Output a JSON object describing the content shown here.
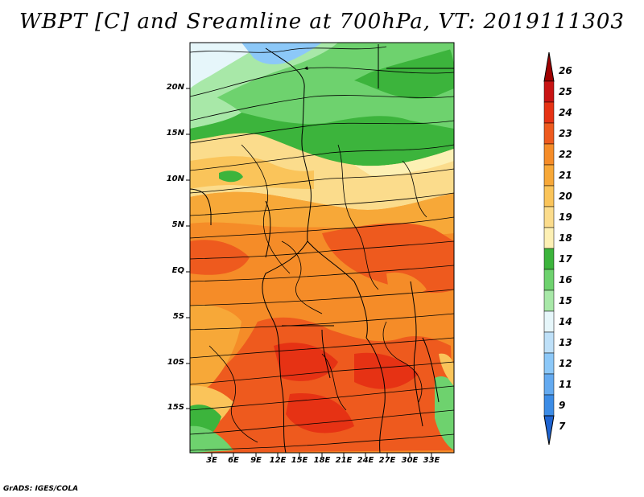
{
  "title": "WBPT [C] and Sreamline at 700hPa, VT: 2019111303",
  "footer": "GrADS: IGES/COLA",
  "lat_labels": [
    "20N",
    "15N",
    "10N",
    "5N",
    "EQ",
    "5S",
    "10S",
    "15S"
  ],
  "lon_labels": [
    "3E",
    "6E",
    "9E",
    "12E",
    "15E",
    "18E",
    "21E",
    "24E",
    "27E",
    "30E",
    "33E"
  ],
  "colorbar": {
    "labels": [
      "26",
      "25",
      "24",
      "23",
      "22",
      "21",
      "20",
      "19",
      "18",
      "17",
      "16",
      "15",
      "14",
      "13",
      "12",
      "11",
      "9",
      "7"
    ],
    "colors": [
      "#a00000",
      "#c81414",
      "#e63214",
      "#ee5a1e",
      "#f58c28",
      "#f7a838",
      "#fac45a",
      "#fbdc8c",
      "#fdf0b4",
      "#3cb43c",
      "#6ed26e",
      "#a8e8a8",
      "#e6f6fa",
      "#bee0f8",
      "#8cc8f8",
      "#64aaf0",
      "#3c8ce6",
      "#1e64d2"
    ]
  },
  "map": {
    "lat_range": [
      -20,
      25
    ],
    "lon_range": [
      0,
      36
    ],
    "field": "wet-bulb potential temperature",
    "level": "700hPa",
    "overlay": "streamlines"
  }
}
